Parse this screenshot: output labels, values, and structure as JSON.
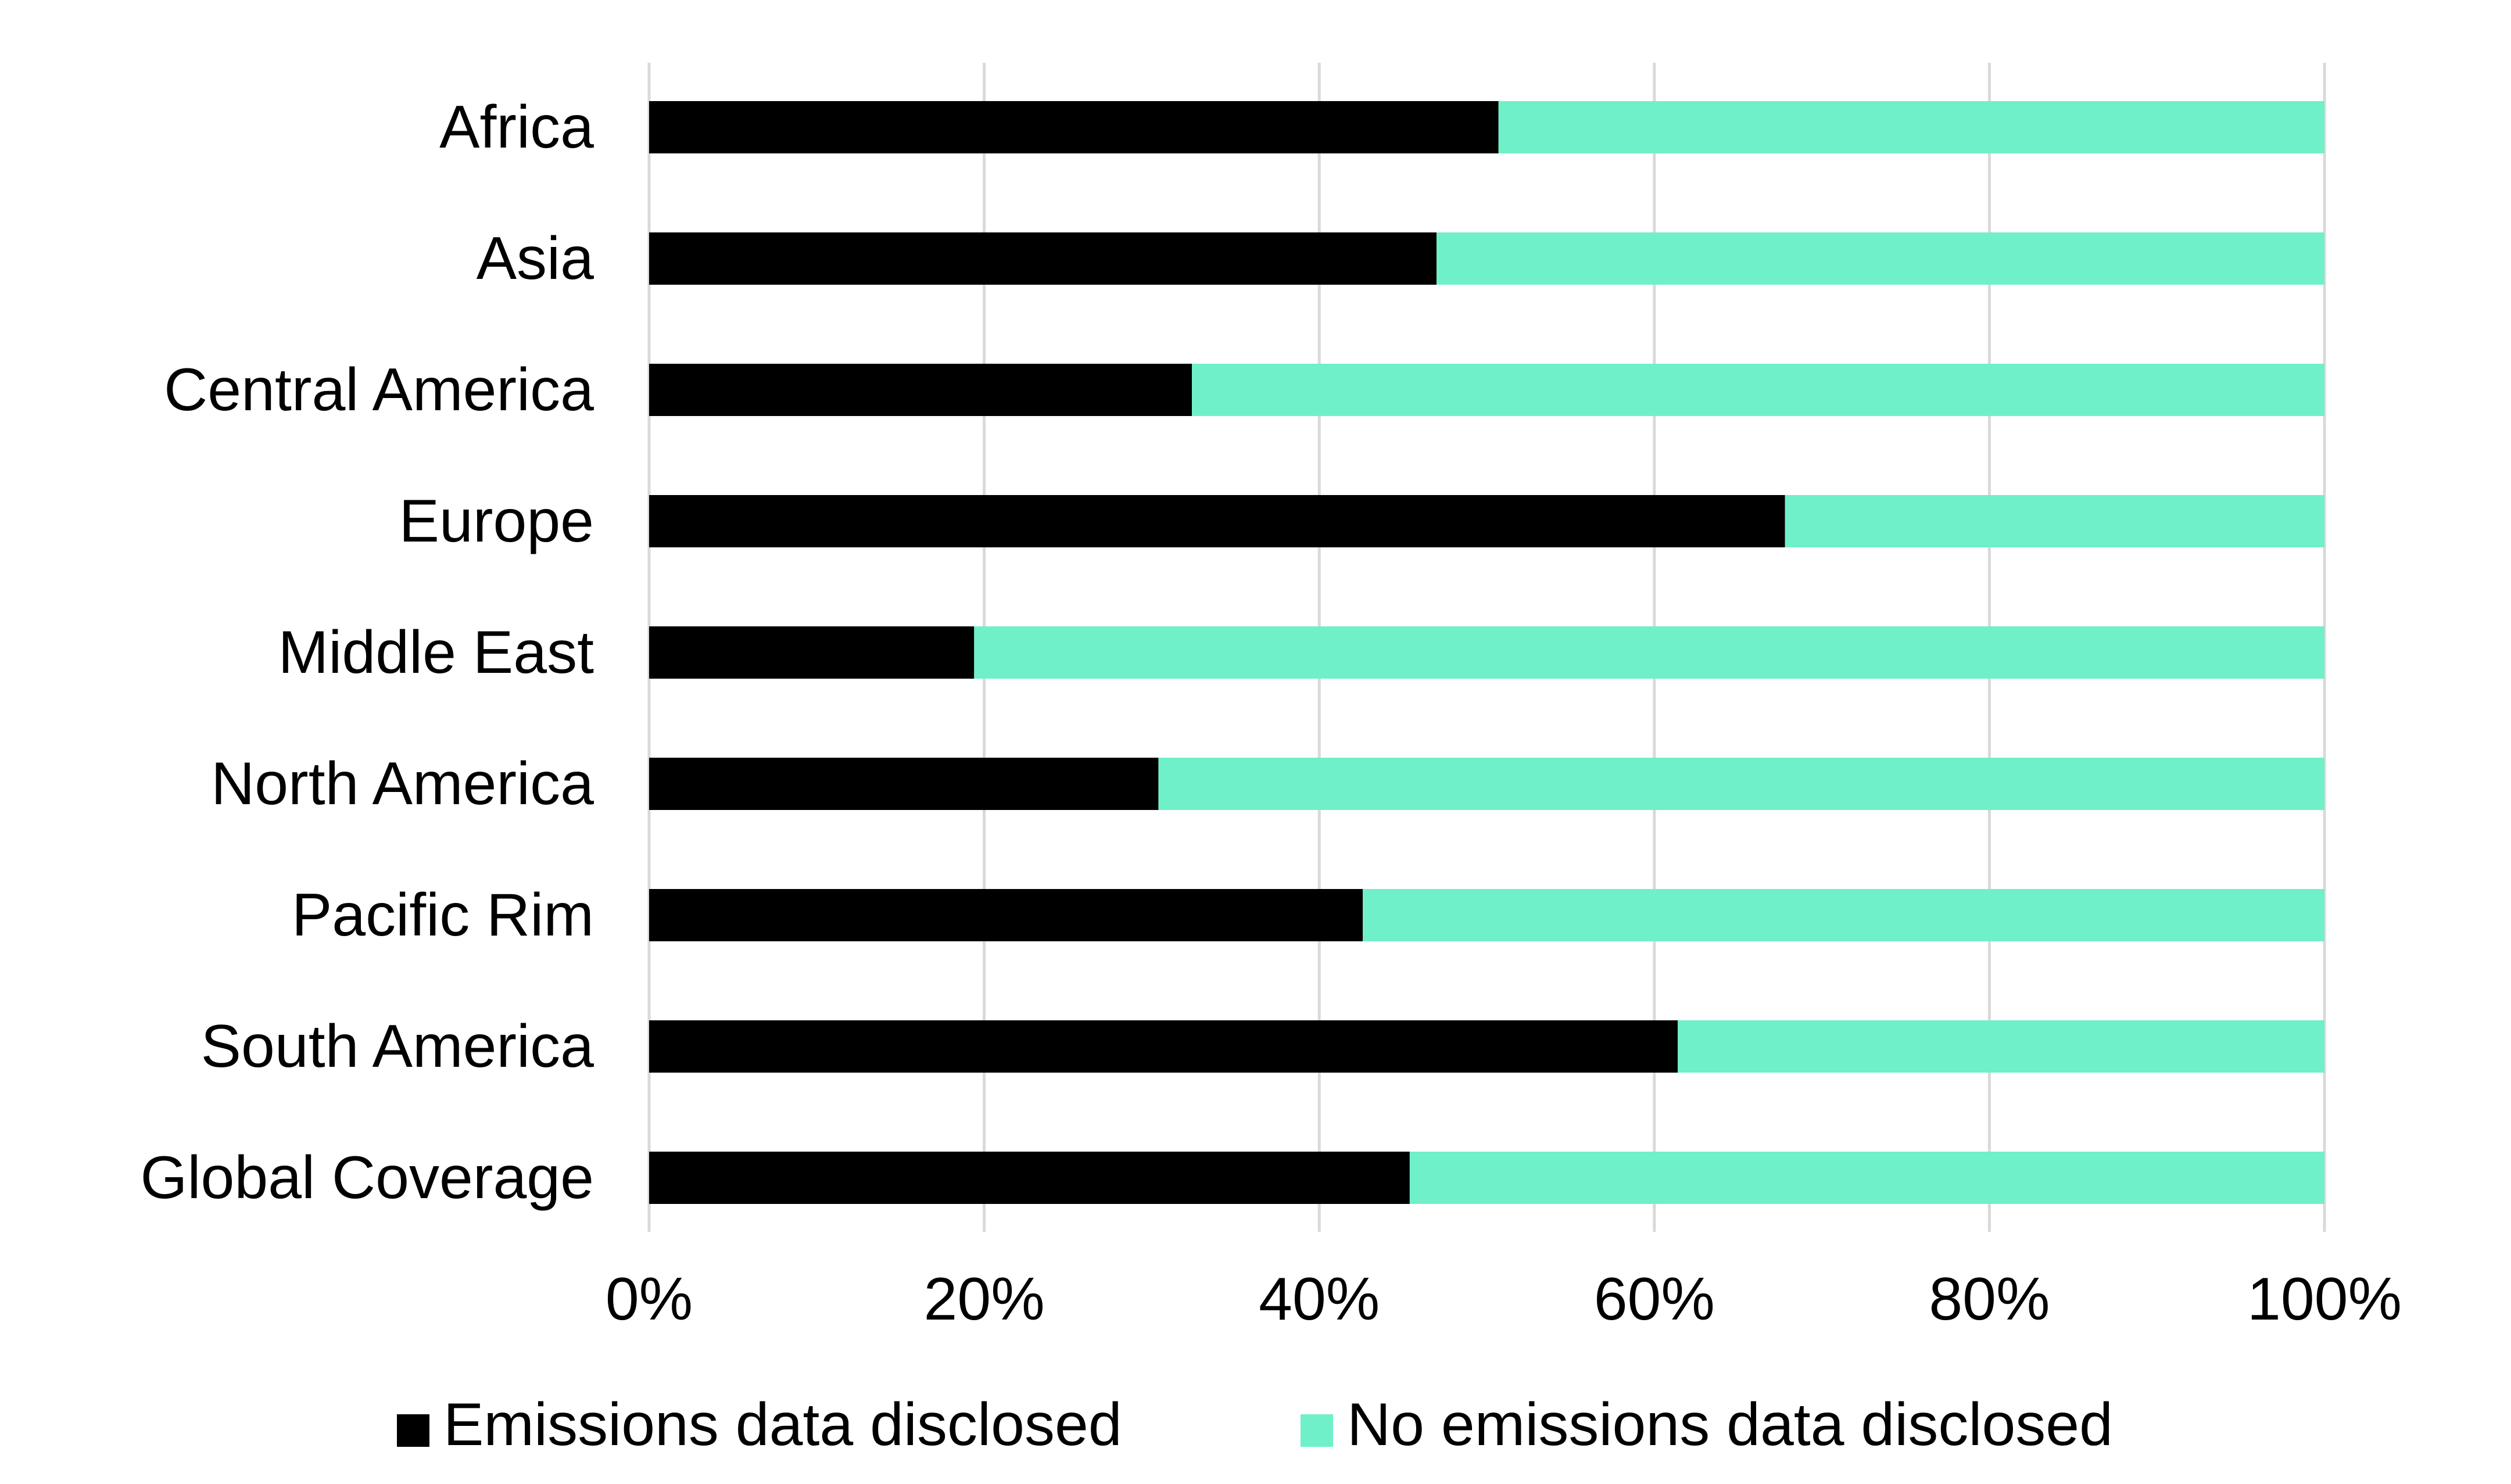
{
  "chart_data": {
    "type": "bar",
    "orientation": "horizontal",
    "stacked": true,
    "categories": [
      "Africa",
      "Asia",
      "Central America",
      "Europe",
      "Middle East",
      "North America",
      "Pacific Rim",
      "South America",
      "Global Coverage"
    ],
    "series": [
      {
        "name": "Emissions data disclosed",
        "color": "#000000",
        "values": [
          50.7,
          47.0,
          32.4,
          67.8,
          19.4,
          30.4,
          42.6,
          61.4,
          45.4
        ]
      },
      {
        "name": "No emissions data disclosed",
        "color": "#6ff0c9",
        "values": [
          49.3,
          53.0,
          67.6,
          32.2,
          80.6,
          69.6,
          57.4,
          38.6,
          54.6
        ]
      }
    ],
    "xlim": [
      0,
      100
    ],
    "xticks": [
      0,
      20,
      40,
      60,
      80,
      100
    ],
    "xtick_labels": [
      "0%",
      "20%",
      "40%",
      "60%",
      "80%",
      "100%"
    ],
    "grid": "vertical",
    "legend_position": "bottom"
  }
}
